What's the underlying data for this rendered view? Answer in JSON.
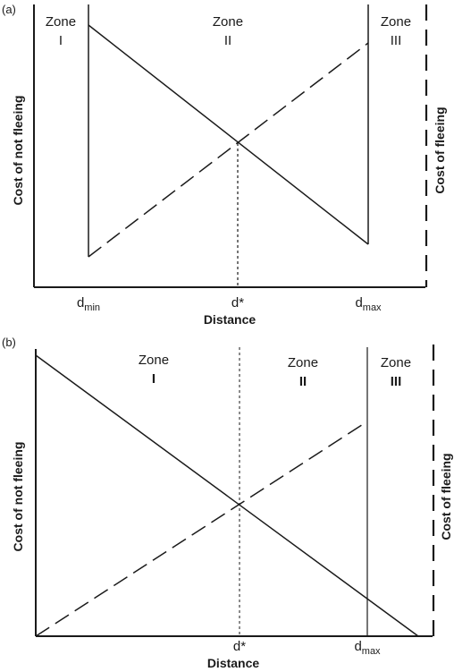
{
  "panel_a": {
    "tag": "(a)",
    "zones": [
      {
        "word": "Zone",
        "numeral": "I"
      },
      {
        "word": "Zone",
        "numeral": "II"
      },
      {
        "word": "Zone",
        "numeral": "III"
      }
    ],
    "ylabel_left": "Cost of not fleeing",
    "ylabel_right": "Cost of fleeing",
    "xlabel": "Distance",
    "ticks": {
      "dmin": {
        "base": "d",
        "sub": "min"
      },
      "dstar": {
        "base": "d*",
        "sub": ""
      },
      "dmax": {
        "base": "d",
        "sub": "max"
      }
    }
  },
  "panel_b": {
    "tag": "(b)",
    "zones": [
      {
        "word": "Zone",
        "numeral": "I"
      },
      {
        "word": "Zone",
        "numeral": "II"
      },
      {
        "word": "Zone",
        "numeral": "III"
      }
    ],
    "ylabel_left": "Cost of not fleeing",
    "ylabel_right": "Cost of fleeing",
    "xlabel": "Distance",
    "ticks": {
      "dstar": {
        "base": "d*",
        "sub": ""
      },
      "dmax": {
        "base": "d",
        "sub": "max"
      }
    }
  },
  "colors": {
    "ink": "#1a1a1a",
    "background": "#ffffff"
  }
}
